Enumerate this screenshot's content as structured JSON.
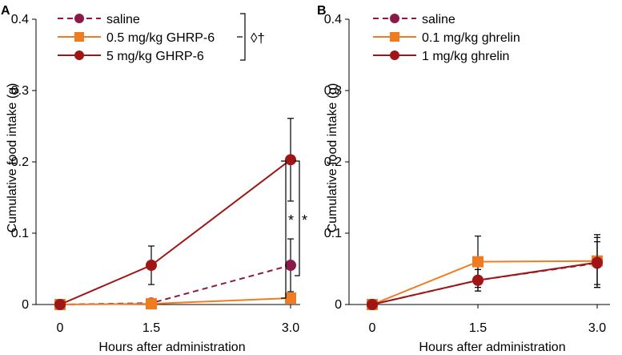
{
  "chart_data": [
    {
      "type": "line",
      "panel_label": "A",
      "title": "",
      "xlabel": "Hours after administration",
      "ylabel": "Cumulative food intake (g)",
      "x": [
        0,
        1.5,
        3.0
      ],
      "xtick_labels": [
        "0",
        "1.5",
        "3.0"
      ],
      "ylim": [
        0,
        0.4
      ],
      "yticks": [
        0,
        0.1,
        0.2,
        0.3,
        0.4
      ],
      "ytick_labels": [
        "0",
        "0.1",
        "0.2",
        "0.3",
        "0.4"
      ],
      "grid": false,
      "legend_position": "top-left",
      "series": [
        {
          "name": "saline",
          "values": [
            0,
            0.002,
            0.055
          ],
          "errors": [
            0,
            0.003,
            0.037
          ],
          "color": "#8b1a4a",
          "marker": "circle",
          "dashed": true
        },
        {
          "name": "0.5 mg/kg GHRP-6",
          "values": [
            0,
            0.001,
            0.009
          ],
          "errors": [
            0,
            0.002,
            0.004
          ],
          "color": "#f07c22",
          "marker": "square",
          "dashed": false
        },
        {
          "name": "5 mg/kg GHRP-6",
          "values": [
            0,
            0.055,
            0.203
          ],
          "errors": [
            0,
            0.027,
            0.058
          ],
          "color": "#a01616",
          "marker": "circle",
          "dashed": false
        }
      ],
      "annotations": {
        "legend_significance": "◊†",
        "star_inner": "*",
        "star_outer": "*"
      }
    },
    {
      "type": "line",
      "panel_label": "B",
      "title": "",
      "xlabel": "Hours after administration",
      "ylabel": "Cumulative food intake (g)",
      "x": [
        0,
        1.5,
        3.0
      ],
      "xtick_labels": [
        "0",
        "1.5",
        "3.0"
      ],
      "ylim": [
        0,
        0.4
      ],
      "yticks": [
        0,
        0.1,
        0.2,
        0.3,
        0.4
      ],
      "ytick_labels": [
        "0",
        "0.1",
        "0.2",
        "0.3",
        "0.4"
      ],
      "grid": false,
      "legend_position": "top-left",
      "series": [
        {
          "name": "saline",
          "values": [
            0,
            0.034,
            0.058
          ],
          "errors": [
            0,
            0.015,
            0.03
          ],
          "color": "#8b1a4a",
          "marker": "circle",
          "dashed": true
        },
        {
          "name": "0.1 mg/kg ghrelin",
          "values": [
            0,
            0.06,
            0.061
          ],
          "errors": [
            0,
            0.036,
            0.037
          ],
          "color": "#f07c22",
          "marker": "square",
          "dashed": false
        },
        {
          "name": "1 mg/kg ghrelin",
          "values": [
            0,
            0.034,
            0.059
          ],
          "errors": [
            0,
            0.015,
            0.035
          ],
          "color": "#a01616",
          "marker": "circle",
          "dashed": false
        }
      ]
    }
  ]
}
